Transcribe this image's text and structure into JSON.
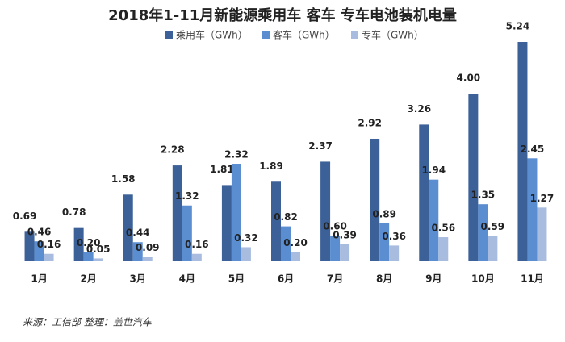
{
  "chart_data": {
    "type": "bar",
    "title": "2018年1-11月新能源乘用车 客车 专车电池装机电量",
    "categories": [
      "1月",
      "2月",
      "3月",
      "4月",
      "5月",
      "6月",
      "7月",
      "8月",
      "9月",
      "10月",
      "11月"
    ],
    "series": [
      {
        "name": "乘用车（GWh）",
        "color": "#3c6198",
        "values": [
          0.69,
          0.78,
          1.58,
          2.28,
          1.81,
          1.89,
          2.37,
          2.92,
          3.26,
          4.0,
          5.24
        ],
        "value_labels": [
          "0.69",
          "0.78",
          "1.58",
          "2.28",
          "1.81",
          "1.89",
          "2.37",
          "2.92",
          "3.26",
          "4.00",
          "5.24"
        ]
      },
      {
        "name": "客车（GWh）",
        "color": "#5a8ed0",
        "values": [
          0.46,
          0.2,
          0.44,
          1.32,
          2.32,
          0.82,
          0.6,
          0.89,
          1.94,
          1.35,
          2.45
        ],
        "value_labels": [
          "0.46",
          "0.20",
          "0.44",
          "1.32",
          "2.32",
          "0.82",
          "0.60",
          "0.89",
          "1.94",
          "1.35",
          "2.45"
        ]
      },
      {
        "name": "专车（GWh）",
        "color": "#a8bce0",
        "values": [
          0.16,
          0.05,
          0.09,
          0.16,
          0.32,
          0.2,
          0.39,
          0.36,
          0.56,
          0.59,
          1.27
        ],
        "value_labels": [
          "0.16",
          "0.05",
          "0.09",
          "0.16",
          "0.32",
          "0.20",
          "0.39",
          "0.36",
          "0.56",
          "0.59",
          "1.27"
        ]
      }
    ],
    "source": "来源：工信部 整理：盖世汽车"
  }
}
